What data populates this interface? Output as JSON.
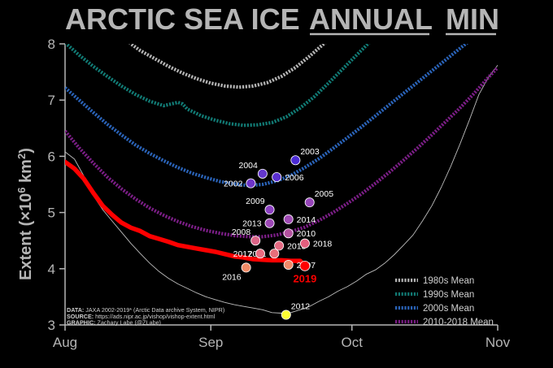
{
  "title_part1": "ARCTIC SEA ICE ",
  "title_part2": "ANNUAL",
  "title_part3": "MIN",
  "ylabel_main": "Extent (×10",
  "ylabel_exp": "6",
  "ylabel_unit": " km",
  "ylabel_unit_exp": "2",
  "ylabel_close": ")",
  "source_lines": [
    {
      "label": "DATA:",
      "text": " JAXA 2002-2019* (Arctic Data archive System, NIPR)"
    },
    {
      "label": "SOURCE:",
      "text": " https://ads.nipr.ac.jp/vishop/vishop-extent.html"
    },
    {
      "label": "GRAPHIC:",
      "text": " Zachary Labe (@ZLabe)"
    }
  ],
  "highlight_label": "2019",
  "chart_data": {
    "type": "line",
    "xlabel": "",
    "ylabel": "Extent (×10⁶ km²)",
    "x_ticks": [
      {
        "label": "Aug",
        "day": 0
      },
      {
        "label": "Sep",
        "day": 31
      },
      {
        "label": "Oct",
        "day": 61
      },
      {
        "label": "Nov",
        "day": 92
      }
    ],
    "xlim": [
      0,
      92
    ],
    "ylim": [
      3,
      8
    ],
    "y_ticks": [
      3,
      4,
      5,
      6,
      7,
      8
    ],
    "grid": false,
    "legend_position": "bottom-right",
    "series": [
      {
        "name": "1980s Mean",
        "color": "#b3b3b3",
        "x": [
          12,
          14,
          16,
          19,
          22,
          25,
          28,
          31,
          34,
          37,
          40,
          43,
          46,
          49,
          52,
          55,
          58,
          61,
          64
        ],
        "y": [
          8.2,
          8.0,
          7.88,
          7.74,
          7.6,
          7.48,
          7.38,
          7.3,
          7.25,
          7.23,
          7.25,
          7.31,
          7.42,
          7.58,
          7.78,
          8.0,
          8.2,
          8.4,
          8.6
        ]
      },
      {
        "name": "1990s Mean",
        "color": "#117a74",
        "x": [
          0,
          3,
          6,
          9,
          12,
          15,
          18,
          21,
          24,
          25,
          26,
          27,
          29,
          32,
          35,
          38,
          41,
          44,
          47,
          50,
          53,
          56,
          59,
          62,
          65,
          68,
          71
        ],
        "y": [
          8.02,
          7.8,
          7.6,
          7.42,
          7.25,
          7.1,
          6.98,
          6.9,
          6.96,
          6.93,
          6.84,
          6.8,
          6.72,
          6.64,
          6.58,
          6.55,
          6.56,
          6.6,
          6.7,
          6.86,
          7.06,
          7.3,
          7.55,
          7.8,
          8.05,
          8.3,
          8.5
        ]
      },
      {
        "name": "2000s Mean",
        "color": "#2a63b8",
        "x": [
          0,
          3,
          6,
          9,
          12,
          15,
          18,
          21,
          24,
          27,
          30,
          33,
          36,
          39,
          42,
          45,
          48,
          51,
          54,
          57,
          60,
          63,
          66,
          69,
          72,
          75,
          78,
          81,
          84,
          87
        ],
        "y": [
          7.22,
          7.0,
          6.78,
          6.57,
          6.38,
          6.2,
          6.05,
          5.92,
          5.8,
          5.7,
          5.62,
          5.55,
          5.51,
          5.48,
          5.5,
          5.56,
          5.66,
          5.8,
          5.96,
          6.14,
          6.33,
          6.52,
          6.72,
          6.92,
          7.12,
          7.32,
          7.52,
          7.72,
          7.92,
          8.12
        ]
      },
      {
        "name": "2010-2018 Mean",
        "color": "#7b1e86",
        "x": [
          0,
          3,
          6,
          9,
          12,
          15,
          18,
          21,
          24,
          27,
          30,
          33,
          36,
          39,
          42,
          45,
          48,
          51,
          54,
          57,
          60,
          63,
          66,
          69,
          72,
          75,
          78,
          81,
          84,
          87,
          90,
          92
        ],
        "y": [
          6.45,
          6.15,
          5.88,
          5.63,
          5.42,
          5.24,
          5.08,
          4.95,
          4.84,
          4.75,
          4.68,
          4.63,
          4.59,
          4.57,
          4.57,
          4.6,
          4.66,
          4.74,
          4.86,
          5.0,
          5.16,
          5.33,
          5.52,
          5.72,
          5.93,
          6.15,
          6.38,
          6.62,
          6.86,
          7.12,
          7.4,
          7.58
        ]
      },
      {
        "name": "2019",
        "color": "#ff0000",
        "x": [
          0,
          2,
          4,
          6,
          8,
          10,
          12,
          14,
          16,
          18,
          20,
          22,
          24,
          26,
          28,
          30,
          32,
          34,
          36,
          38,
          40,
          42,
          44,
          46,
          48,
          50,
          51
        ],
        "y": [
          5.9,
          5.78,
          5.6,
          5.35,
          5.12,
          4.96,
          4.82,
          4.73,
          4.67,
          4.58,
          4.53,
          4.48,
          4.42,
          4.39,
          4.36,
          4.33,
          4.3,
          4.26,
          4.22,
          4.2,
          4.17,
          4.16,
          4.15,
          4.15,
          4.14,
          4.14,
          4.05
        ]
      },
      {
        "name": "Minimum envelope",
        "color": "#bdbdbd",
        "x": [
          0,
          2,
          4,
          6,
          8,
          10,
          12,
          14,
          16,
          18,
          20,
          22,
          24,
          26,
          28,
          30,
          32,
          34,
          36,
          38,
          40,
          42,
          44,
          46,
          48,
          50,
          52,
          54,
          56,
          58,
          60,
          62,
          64,
          66,
          68,
          70,
          72,
          74,
          76,
          78,
          80,
          82,
          84,
          86,
          88,
          90,
          92
        ],
        "y": [
          6.08,
          5.95,
          5.65,
          5.3,
          5.05,
          4.85,
          4.65,
          4.45,
          4.27,
          4.1,
          3.95,
          3.83,
          3.73,
          3.65,
          3.57,
          3.5,
          3.45,
          3.4,
          3.36,
          3.33,
          3.3,
          3.27,
          3.22,
          3.21,
          3.22,
          3.27,
          3.33,
          3.42,
          3.5,
          3.6,
          3.68,
          3.78,
          3.9,
          3.98,
          4.1,
          4.25,
          4.42,
          4.6,
          4.85,
          5.12,
          5.45,
          5.82,
          6.22,
          6.65,
          7.1,
          7.4,
          7.62
        ]
      }
    ],
    "points": [
      {
        "label": "2002",
        "day": 39.5,
        "value": 5.52,
        "color": "#6e34c9",
        "label_pos": "left"
      },
      {
        "label": "2003",
        "day": 49.0,
        "value": 5.93,
        "color": "#4b2bd4",
        "label_pos": "above-right"
      },
      {
        "label": "2004",
        "day": 42.0,
        "value": 5.69,
        "color": "#6337cc",
        "label_pos": "above-left"
      },
      {
        "label": "2005",
        "day": 52.0,
        "value": 5.18,
        "color": "#9544b8",
        "label_pos": "above-right"
      },
      {
        "label": "2006",
        "day": 45.0,
        "value": 5.63,
        "color": "#5a2fd0",
        "label_pos": "right"
      },
      {
        "label": "2007",
        "day": 47.5,
        "value": 4.07,
        "color": "#f08a6a",
        "label_pos": "right"
      },
      {
        "label": "2008",
        "day": 40.5,
        "value": 4.5,
        "color": "#dd6588",
        "label_pos": "above-left"
      },
      {
        "label": "2009",
        "day": 43.5,
        "value": 5.05,
        "color": "#8b3fc0",
        "label_pos": "above-left"
      },
      {
        "label": "2010",
        "day": 47.5,
        "value": 4.63,
        "color": "#b3519f",
        "label_pos": "right"
      },
      {
        "label": "2011",
        "day": 44.5,
        "value": 4.27,
        "color": "#e86f7a",
        "label_pos": "left"
      },
      {
        "label": "2012",
        "day": 47.0,
        "value": 3.18,
        "color": "#ffff33",
        "label_pos": "above-right"
      },
      {
        "label": "2013",
        "day": 43.5,
        "value": 4.81,
        "color": "#9d48b6",
        "label_pos": "left"
      },
      {
        "label": "2014",
        "day": 47.5,
        "value": 4.88,
        "color": "#a04bb4",
        "label_pos": "right"
      },
      {
        "label": "2015",
        "day": 45.5,
        "value": 4.41,
        "color": "#e56b83",
        "label_pos": "right"
      },
      {
        "label": "2016",
        "day": 38.5,
        "value": 4.02,
        "color": "#f28a66",
        "label_pos": "below-left"
      },
      {
        "label": "2017",
        "day": 41.5,
        "value": 4.27,
        "color": "#e96c80",
        "label_pos": "left"
      },
      {
        "label": "2018",
        "day": 51.0,
        "value": 4.45,
        "color": "#e25f7e",
        "label_pos": "right"
      }
    ],
    "highlight_point": {
      "label": "2019",
      "day": 51.0,
      "value": 4.05,
      "color": "#ff0000"
    }
  }
}
